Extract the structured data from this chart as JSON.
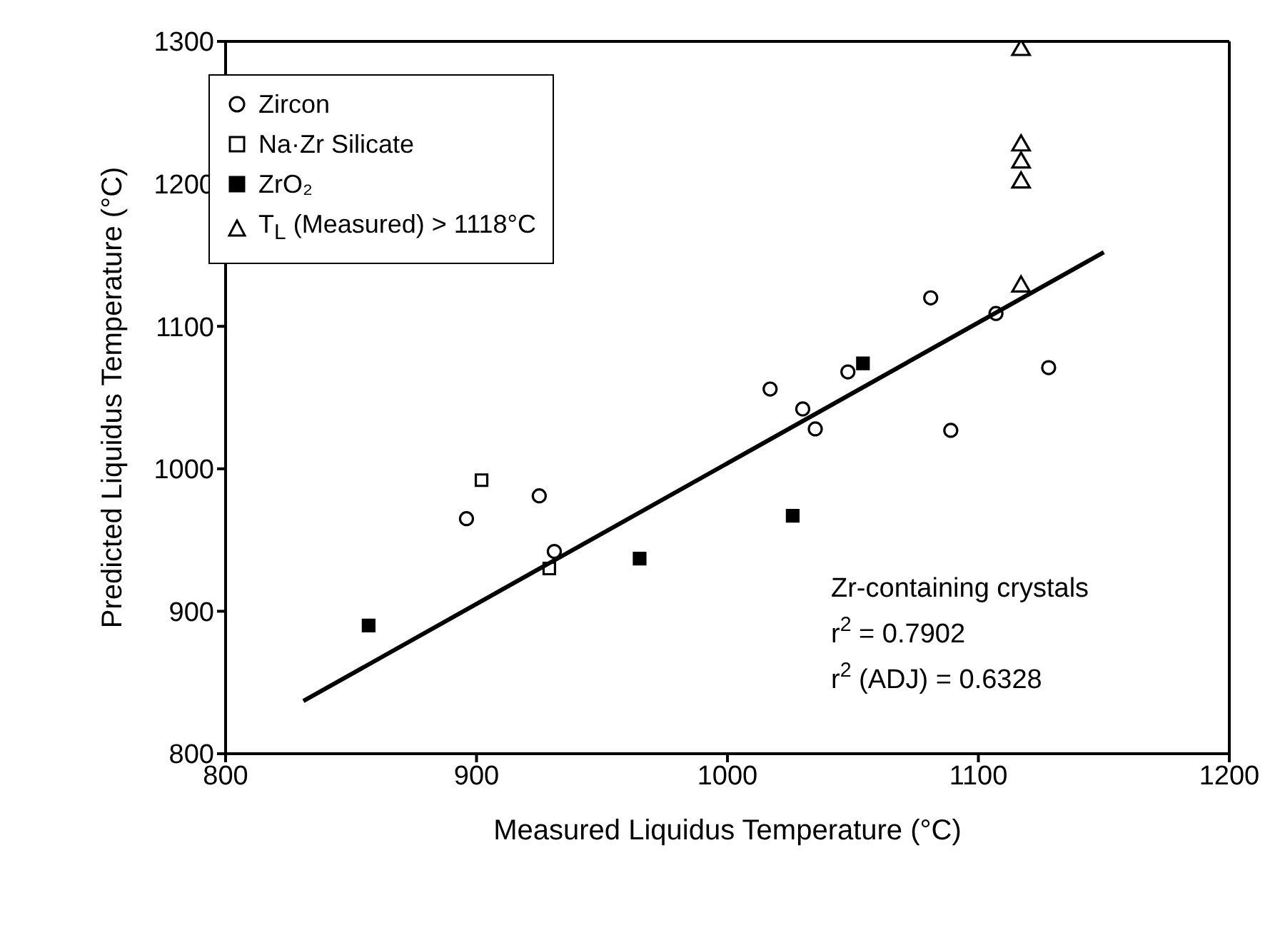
{
  "chart_data": {
    "type": "scatter",
    "xlabel": "Measured Liquidus Temperature (°C)",
    "ylabel": "Predicted Liquidus Temperature (°C)",
    "xlim": [
      800,
      1200
    ],
    "xticks": [
      800,
      900,
      1000,
      1100,
      1200
    ],
    "ylim": [
      800,
      1300
    ],
    "yticks": [
      800,
      900,
      1000,
      1100,
      1200,
      1300
    ],
    "grid": false,
    "legend": "top left",
    "annotations": [
      "Zr-containing crystals",
      "r$^{2}$ = 0.7902",
      "r$^{2}$ (ADJ) = 0.6328"
    ],
    "series": [
      {
        "name": "Zircon",
        "color": "#000000",
        "marker": "circle",
        "x": [
          896,
          925,
          931,
          1017,
          1030,
          1035,
          1048,
          1081,
          1089,
          1107,
          1128
        ],
        "values": [
          965,
          981,
          942,
          1056,
          1042,
          1028,
          1068,
          1120,
          1027,
          1109,
          1071
        ]
      },
      {
        "name": "Na·Zr Silicate",
        "color": "#000000",
        "marker": "square",
        "x": [
          902,
          929
        ],
        "values": [
          992,
          930
        ]
      },
      {
        "name": "ZrO₂",
        "color": "#000000",
        "marker": "square",
        "x": [
          857,
          965,
          1026,
          1054
        ],
        "values": [
          890,
          937,
          967,
          1074
        ]
      },
      {
        "name": "T$_{L}$ (Measured) > 1118°C",
        "color": "#000000",
        "marker": "triangle",
        "x": [
          1117,
          1117,
          1117,
          1117,
          1117
        ],
        "values": [
          1294,
          1227,
          1215,
          1201,
          1128
        ]
      },
      {
        "type": "line",
        "color": "#000000",
        "marker": "none",
        "line_style": "solid",
        "x": [
          831,
          1150
        ],
        "values": [
          837,
          1152
        ]
      }
    ]
  }
}
